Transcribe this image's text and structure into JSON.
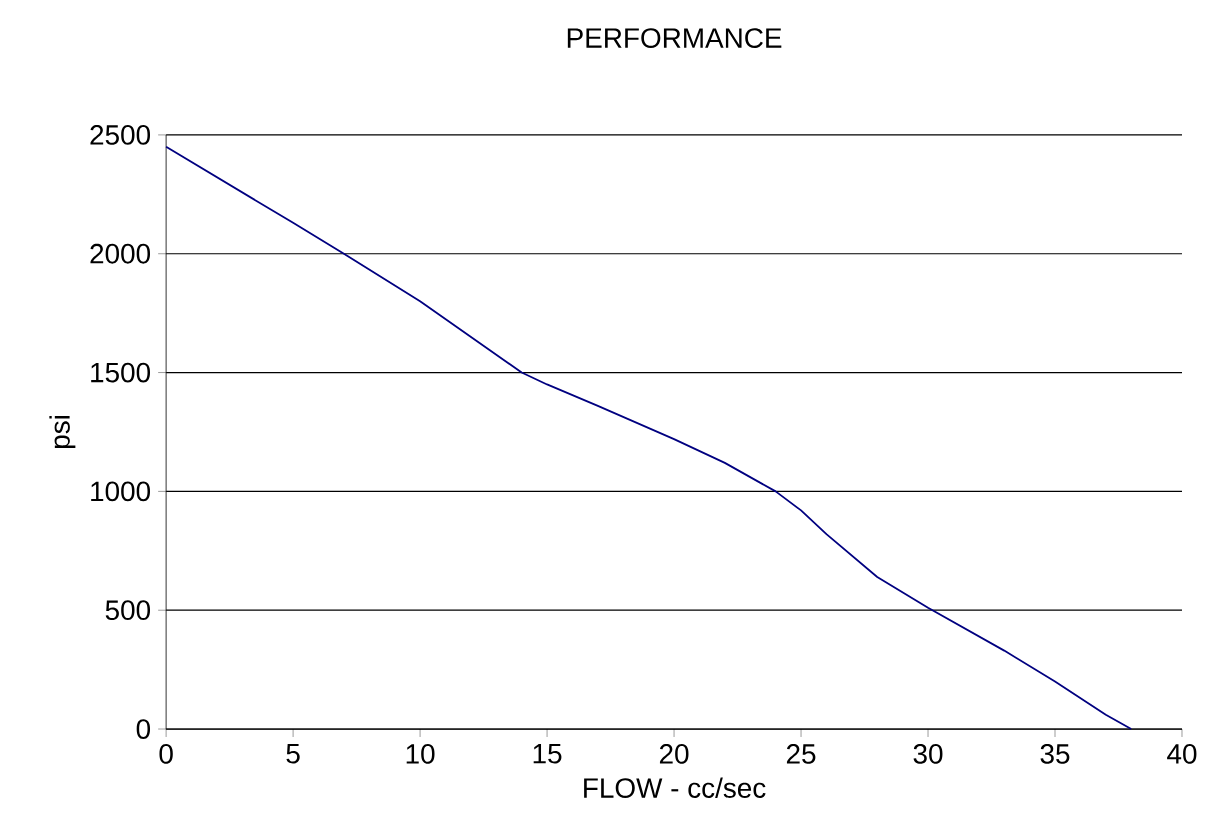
{
  "chart_data": {
    "type": "line",
    "title": "PERFORMANCE",
    "xlabel": "FLOW - cc/sec",
    "ylabel": "psi",
    "xlim": [
      0,
      40
    ],
    "ylim": [
      0,
      2500
    ],
    "xticks": [
      0,
      5,
      10,
      15,
      20,
      25,
      30,
      35,
      40
    ],
    "yticks": [
      0,
      500,
      1000,
      1500,
      2000,
      2500
    ],
    "grid": "y",
    "series": [
      {
        "color": "#000080",
        "x": [
          0,
          5,
          7,
          10,
          12,
          14,
          15,
          17,
          20,
          22,
          24,
          25,
          26,
          28,
          30,
          33,
          35,
          37,
          38
        ],
        "values": [
          2450,
          2130,
          2000,
          1800,
          1650,
          1500,
          1450,
          1360,
          1220,
          1120,
          1000,
          920,
          820,
          640,
          510,
          330,
          200,
          60,
          0
        ]
      }
    ]
  }
}
